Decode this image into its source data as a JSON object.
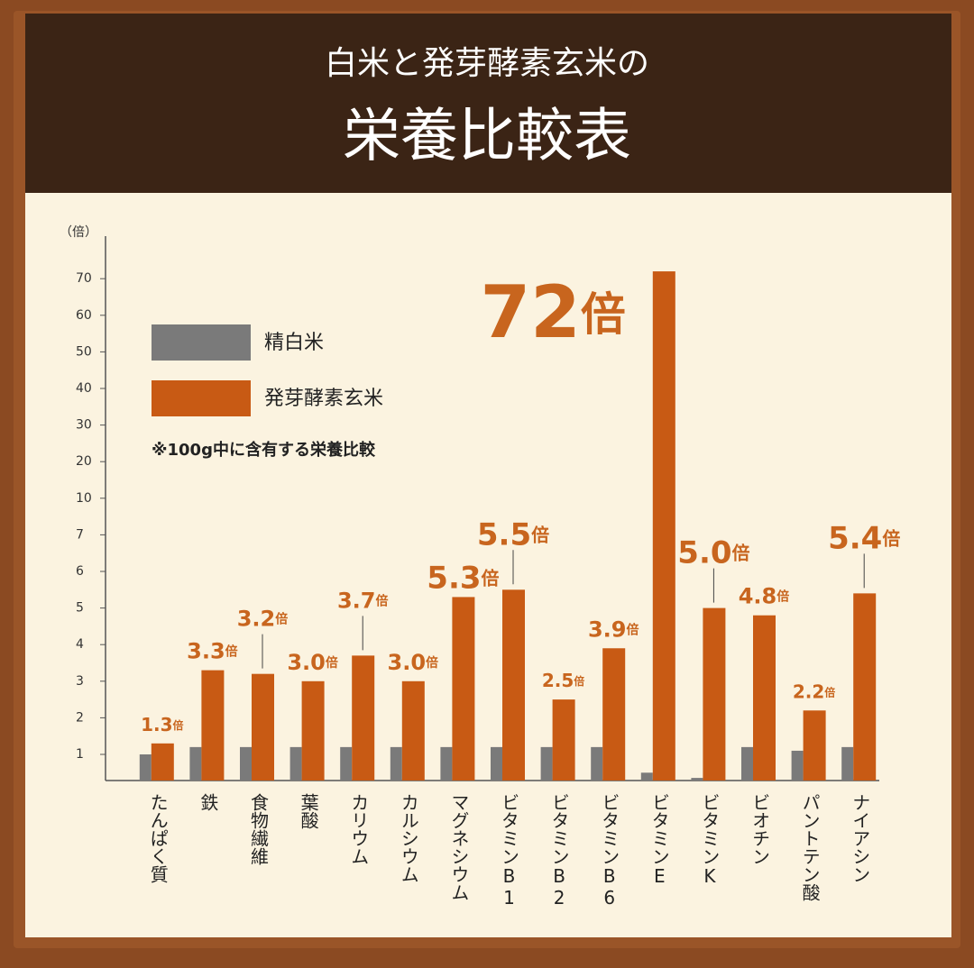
{
  "chart_data": {
    "type": "bar",
    "title": "白米と発芽酵素玄米の",
    "subtitle": "栄養比較表",
    "y_label": "（倍）",
    "note": "※100g中に含有する栄養比較",
    "categories": [
      "たんぱく質",
      "鉄",
      "食物繊維",
      "葉酸",
      "カリウム",
      "カルシウム",
      "マグネシウム",
      "ビタミンB1",
      "ビタミンB2",
      "ビタミンB6",
      "ビタミンE",
      "ビタミンK",
      "ビオチン",
      "パントテン酸",
      "ナイアシン"
    ],
    "series": [
      {
        "name": "精白米",
        "color": "#7a7a7a",
        "values": [
          1.0,
          1.2,
          1.2,
          1.2,
          1.2,
          1.2,
          1.2,
          1.2,
          1.2,
          1.2,
          0.3,
          0.1,
          1.2,
          1.1,
          1.2
        ]
      },
      {
        "name": "発芽酵素玄米",
        "color": "#c85a14",
        "values": [
          1.3,
          3.3,
          3.2,
          3.0,
          3.7,
          3.0,
          5.3,
          5.5,
          2.5,
          3.9,
          72,
          5.0,
          4.8,
          2.2,
          5.4
        ],
        "value_labels": [
          "1.3倍",
          "3.3倍",
          "3.2倍",
          "3.0倍",
          "3.7倍",
          "3.0倍",
          "5.3倍",
          "5.5倍",
          "2.5倍",
          "3.9倍",
          "72倍",
          "5.0倍",
          "4.8倍",
          "2.2倍",
          "5.4倍"
        ]
      }
    ],
    "ylim": [
      0,
      75
    ],
    "yticks": [
      1,
      2,
      3,
      4,
      5,
      6,
      7,
      10,
      20,
      30,
      40,
      50,
      60,
      70
    ]
  }
}
